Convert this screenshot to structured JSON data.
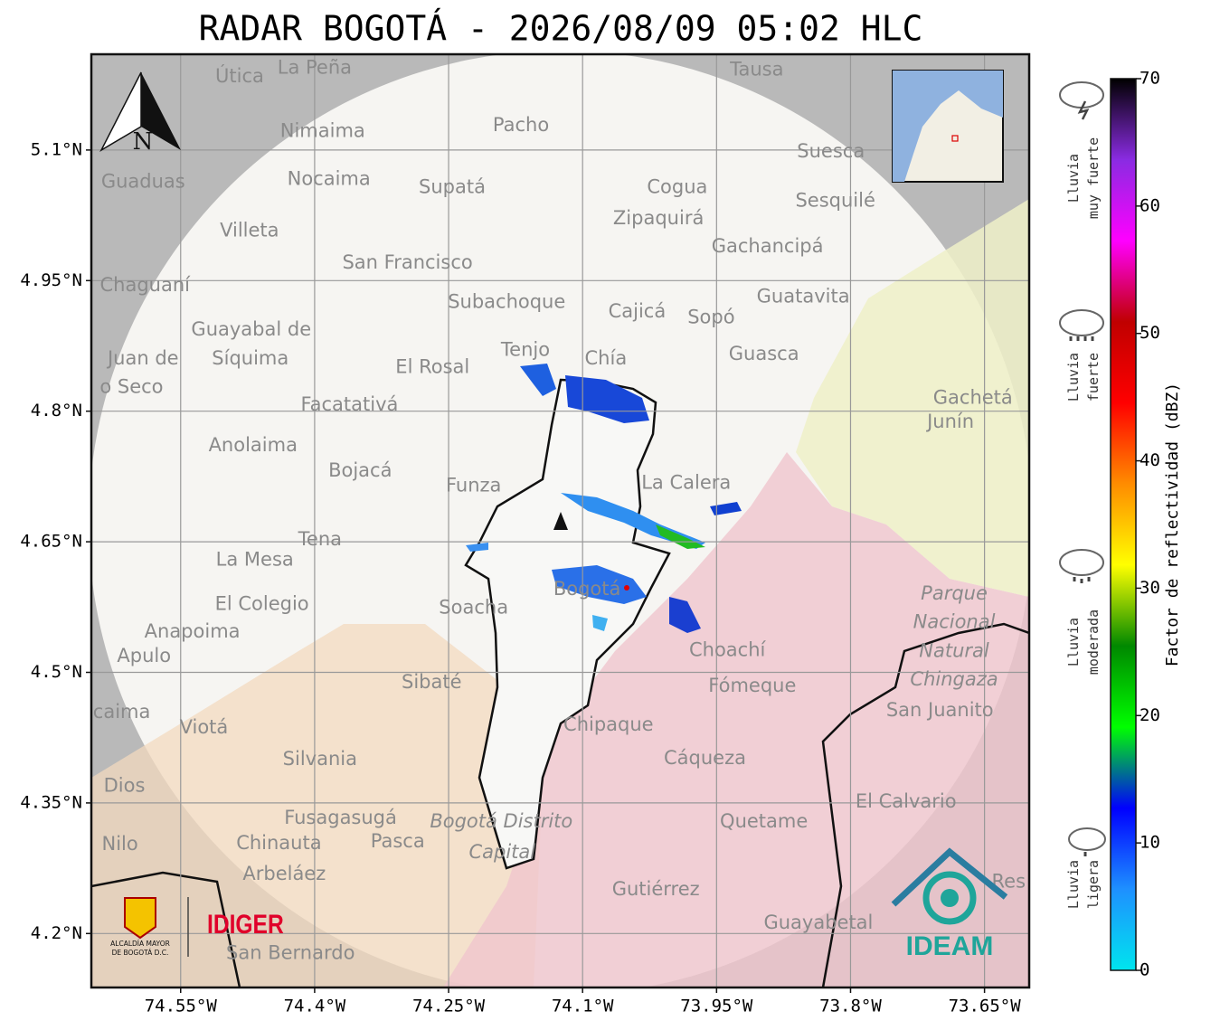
{
  "title": "RADAR BOGOTÁ - 2026/08/09 05:02 HLC",
  "map": {
    "xlim": [
      -74.65,
      -73.6
    ],
    "ylim": [
      4.138,
      5.21
    ],
    "xticks": [
      {
        "value": -74.55,
        "label": "74.55°W"
      },
      {
        "value": -74.4,
        "label": "74.4°W"
      },
      {
        "value": -74.25,
        "label": "74.25°W"
      },
      {
        "value": -74.1,
        "label": "74.1°W"
      },
      {
        "value": -73.95,
        "label": "73.95°W"
      },
      {
        "value": -73.8,
        "label": "73.8°W"
      },
      {
        "value": -73.65,
        "label": "73.65°W"
      }
    ],
    "yticks": [
      {
        "value": 5.1,
        "label": "5.1°N"
      },
      {
        "value": 4.95,
        "label": "4.95°N"
      },
      {
        "value": 4.8,
        "label": "4.8°N"
      },
      {
        "value": 4.65,
        "label": "4.65°N"
      },
      {
        "value": 4.5,
        "label": "4.5°N"
      },
      {
        "value": 4.35,
        "label": "4.35°N"
      },
      {
        "value": 4.2,
        "label": "4.2°N"
      }
    ],
    "north": "N",
    "places": [
      {
        "name": "Útica",
        "lon": -74.484,
        "lat": 5.184
      },
      {
        "name": "La Peña",
        "lon": -74.4,
        "lat": 5.194
      },
      {
        "name": "Tausa",
        "lon": -73.905,
        "lat": 5.192
      },
      {
        "name": "Pacho",
        "lon": -74.169,
        "lat": 5.128
      },
      {
        "name": "Nimaima",
        "lon": -74.391,
        "lat": 5.121
      },
      {
        "name": "Guaduas",
        "lon": -74.592,
        "lat": 5.063
      },
      {
        "name": "Nocaima",
        "lon": -74.384,
        "lat": 5.066
      },
      {
        "name": "Supatá",
        "lon": -74.246,
        "lat": 5.057
      },
      {
        "name": "Cogua",
        "lon": -73.994,
        "lat": 5.057
      },
      {
        "name": "Suesca",
        "lon": -73.822,
        "lat": 5.098
      },
      {
        "name": "Sesquilé",
        "lon": -73.817,
        "lat": 5.041
      },
      {
        "name": "Zipaquirá",
        "lon": -74.015,
        "lat": 5.021
      },
      {
        "name": "Villeta",
        "lon": -74.473,
        "lat": 5.007
      },
      {
        "name": "Gachancipá",
        "lon": -73.893,
        "lat": 4.989
      },
      {
        "name": "San Francisco",
        "lon": -74.296,
        "lat": 4.97
      },
      {
        "name": "Chaguaní",
        "lon": -74.59,
        "lat": 4.944
      },
      {
        "name": "Guatavita",
        "lon": -73.853,
        "lat": 4.931
      },
      {
        "name": "Subachoque",
        "lon": -74.185,
        "lat": 4.925
      },
      {
        "name": "Cajicá",
        "lon": -74.039,
        "lat": 4.914
      },
      {
        "name": "Sopó",
        "lon": -73.956,
        "lat": 4.907
      },
      {
        "name": "Guayabal de",
        "lon": -74.471,
        "lat": 4.893
      },
      {
        "name": "Síquima",
        "lon": -74.472,
        "lat": 4.86
      },
      {
        "name": "Tenjo",
        "lon": -74.164,
        "lat": 4.87
      },
      {
        "name": "Chía",
        "lon": -74.074,
        "lat": 4.86
      },
      {
        "name": "Guasca",
        "lon": -73.897,
        "lat": 4.865
      },
      {
        "name": "El Rosal",
        "lon": -74.268,
        "lat": 4.85
      },
      {
        "name": "Juan de",
        "lon": -74.592,
        "lat": 4.86
      },
      {
        "name": "o Seco",
        "lon": -74.605,
        "lat": 4.827
      },
      {
        "name": "Facatativá",
        "lon": -74.361,
        "lat": 4.807
      },
      {
        "name": "Gachetá",
        "lon": -73.663,
        "lat": 4.815
      },
      {
        "name": "Junín",
        "lon": -73.688,
        "lat": 4.787
      },
      {
        "name": "Anolaima",
        "lon": -74.469,
        "lat": 4.76
      },
      {
        "name": "Bojacá",
        "lon": -74.349,
        "lat": 4.731
      },
      {
        "name": "Funza",
        "lon": -74.222,
        "lat": 4.714
      },
      {
        "name": "La Calera",
        "lon": -73.984,
        "lat": 4.717
      },
      {
        "name": "Tena",
        "lon": -74.394,
        "lat": 4.652
      },
      {
        "name": "La Mesa",
        "lon": -74.467,
        "lat": 4.629
      },
      {
        "name": "El Colegio",
        "lon": -74.459,
        "lat": 4.578
      },
      {
        "name": "Soacha",
        "lon": -74.222,
        "lat": 4.574
      },
      {
        "name": "Bogotá",
        "lon": -74.095,
        "lat": 4.595
      },
      {
        "name": "Parque",
        "lon": -73.684,
        "lat": 4.59
      },
      {
        "name": "Nacional",
        "lon": -73.684,
        "lat": 4.557
      },
      {
        "name": "Natural",
        "lon": -73.684,
        "lat": 4.524
      },
      {
        "name": "Chingaza",
        "lon": -73.684,
        "lat": 4.491
      },
      {
        "name": "Anapoima",
        "lon": -74.537,
        "lat": 4.546
      },
      {
        "name": "Apulo",
        "lon": -74.591,
        "lat": 4.518
      },
      {
        "name": "Choachí",
        "lon": -73.938,
        "lat": 4.525
      },
      {
        "name": "Sibaté",
        "lon": -74.269,
        "lat": 4.488
      },
      {
        "name": "Fómeque",
        "lon": -73.91,
        "lat": 4.484
      },
      {
        "name": "San Juanito",
        "lon": -73.7,
        "lat": 4.456
      },
      {
        "name": "caima",
        "lon": -74.616,
        "lat": 4.454
      },
      {
        "name": "Viotá",
        "lon": -74.524,
        "lat": 4.436
      },
      {
        "name": "Chipaque",
        "lon": -74.071,
        "lat": 4.439
      },
      {
        "name": "Cáqueza",
        "lon": -73.963,
        "lat": 4.401
      },
      {
        "name": "Silvania",
        "lon": -74.394,
        "lat": 4.4
      },
      {
        "name": "Dios",
        "lon": -74.613,
        "lat": 4.369
      },
      {
        "name": "El Calvario",
        "lon": -73.738,
        "lat": 4.351
      },
      {
        "name": "Fusagasugá",
        "lon": -74.371,
        "lat": 4.332
      },
      {
        "name": "Quetame",
        "lon": -73.897,
        "lat": 4.328
      },
      {
        "name": "Bogotá Distrito",
        "lon": -74.191,
        "lat": 4.328
      },
      {
        "name": "Capital",
        "lon": -74.19,
        "lat": 4.293
      },
      {
        "name": "Nilo",
        "lon": -74.618,
        "lat": 4.302
      },
      {
        "name": "Chinauta",
        "lon": -74.44,
        "lat": 4.303
      },
      {
        "name": "Pasca",
        "lon": -74.307,
        "lat": 4.305
      },
      {
        "name": "Arbeláez",
        "lon": -74.434,
        "lat": 4.268
      },
      {
        "name": "Gutiérrez",
        "lon": -74.018,
        "lat": 4.25
      },
      {
        "name": "Res",
        "lon": -73.623,
        "lat": 4.259
      },
      {
        "name": "Guayabetal",
        "lon": -73.836,
        "lat": 4.212
      },
      {
        "name": "San Bernardo",
        "lon": -74.427,
        "lat": 4.177
      }
    ]
  },
  "colorbar": {
    "label": "Factor de reflectividad (dBZ)",
    "lim": [
      0,
      70
    ],
    "ticks": [
      0,
      10,
      20,
      30,
      40,
      50,
      60,
      70
    ],
    "colors": [
      "#00e5ee",
      "#1e90ff",
      "#0000ff",
      "#00ff00",
      "#008800",
      "#ffff00",
      "#ff8c00",
      "#ff0000",
      "#c00000",
      "#ff00ff",
      "#8a2be2",
      "#000000"
    ]
  },
  "legend": [
    {
      "lines": [
        "Lluvia",
        "muy fuerte"
      ]
    },
    {
      "lines": [
        "Lluvia",
        "fuerte"
      ]
    },
    {
      "lines": [
        "Lluvia",
        "moderada"
      ]
    },
    {
      "lines": [
        "Lluvia",
        "ligera"
      ]
    }
  ],
  "logos": {
    "alcaldia": [
      "ALCALDÍA MAYOR",
      "DE BOGOTÁ D.C."
    ],
    "idiger": "IDIGER",
    "ideam": "IDEAM"
  }
}
